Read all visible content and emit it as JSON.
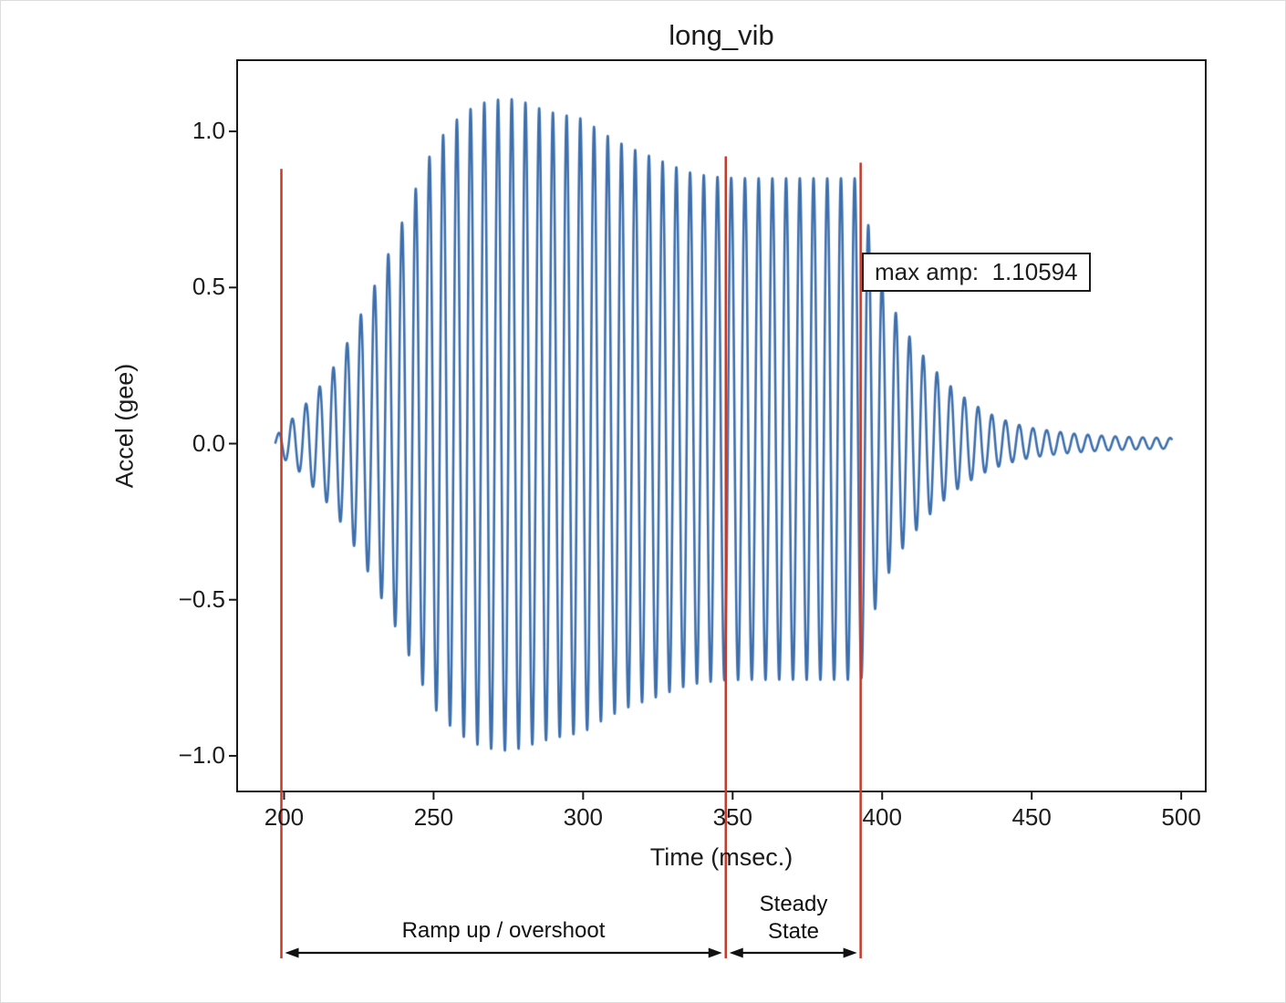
{
  "chart_data": {
    "type": "line",
    "title": "long_vib",
    "xlabel": "Time (msec.)",
    "ylabel": "Accel (gee)",
    "xlim": [
      184,
      508.5
    ],
    "ylim": [
      -1.117,
      1.231
    ],
    "xticks": [
      200,
      250,
      300,
      350,
      400,
      450,
      500
    ],
    "xtick_labels": [
      "200",
      "250",
      "300",
      "350",
      "400",
      "450",
      "500"
    ],
    "yticks": [
      -1.0,
      -0.5,
      0.0,
      0.5,
      1.0
    ],
    "ytick_labels": [
      "−1.0",
      "−0.5",
      "0.0",
      "0.5",
      "1.0"
    ],
    "grid": false,
    "line_color": "#3d6fad",
    "axis_color": "#1a1a1a",
    "max_amp": 1.10594,
    "series": [
      {
        "name": "accel",
        "signal": {
          "t_start": 197,
          "t_end": 497,
          "dt": 0.05,
          "cycles_per_ms": 0.218,
          "neg_scale": 0.89,
          "envelope": [
            [
              197,
              0.02
            ],
            [
              200,
              0.055
            ],
            [
              205,
              0.1
            ],
            [
              210,
              0.16
            ],
            [
              215,
              0.22
            ],
            [
              220,
              0.3
            ],
            [
              225,
              0.4
            ],
            [
              230,
              0.5
            ],
            [
              235,
              0.61
            ],
            [
              240,
              0.72
            ],
            [
              245,
              0.84
            ],
            [
              250,
              0.95
            ],
            [
              255,
              1.01
            ],
            [
              258,
              1.04
            ],
            [
              262,
              1.07
            ],
            [
              266,
              1.09
            ],
            [
              270,
              1.1
            ],
            [
              275,
              1.106
            ],
            [
              280,
              1.095
            ],
            [
              285,
              1.075
            ],
            [
              290,
              1.06
            ],
            [
              295,
              1.05
            ],
            [
              300,
              1.04
            ],
            [
              305,
              1.005
            ],
            [
              310,
              0.975
            ],
            [
              315,
              0.95
            ],
            [
              320,
              0.93
            ],
            [
              325,
              0.91
            ],
            [
              330,
              0.89
            ],
            [
              335,
              0.87
            ],
            [
              340,
              0.86
            ],
            [
              347,
              0.852
            ],
            [
              355,
              0.85
            ],
            [
              390,
              0.85
            ],
            [
              393,
              0.85
            ],
            [
              394.5,
              0.74
            ],
            [
              398,
              0.58
            ],
            [
              402,
              0.47
            ],
            [
              406,
              0.39
            ],
            [
              410,
              0.33
            ],
            [
              415,
              0.265
            ],
            [
              420,
              0.21
            ],
            [
              425,
              0.165
            ],
            [
              430,
              0.13
            ],
            [
              435,
              0.1
            ],
            [
              440,
              0.078
            ],
            [
              445,
              0.062
            ],
            [
              450,
              0.05
            ],
            [
              457,
              0.04
            ],
            [
              464,
              0.032
            ],
            [
              472,
              0.026
            ],
            [
              480,
              0.022
            ],
            [
              490,
              0.019
            ],
            [
              497,
              0.018
            ]
          ]
        }
      }
    ],
    "annotations": {
      "max_amp_label": "max amp:  1.10594",
      "red_color": "#c63a2a",
      "red_lines": [
        {
          "t": 199.1,
          "top": 0.88
        },
        {
          "t": 347.7,
          "top": 0.92
        },
        {
          "t": 392.8,
          "top": 0.9
        }
      ],
      "regions": [
        {
          "label": "Ramp up / overshoot",
          "from": 199.1,
          "to": 347.7
        },
        {
          "label": "Steady\nState",
          "from": 347.7,
          "to": 392.8
        }
      ]
    }
  }
}
